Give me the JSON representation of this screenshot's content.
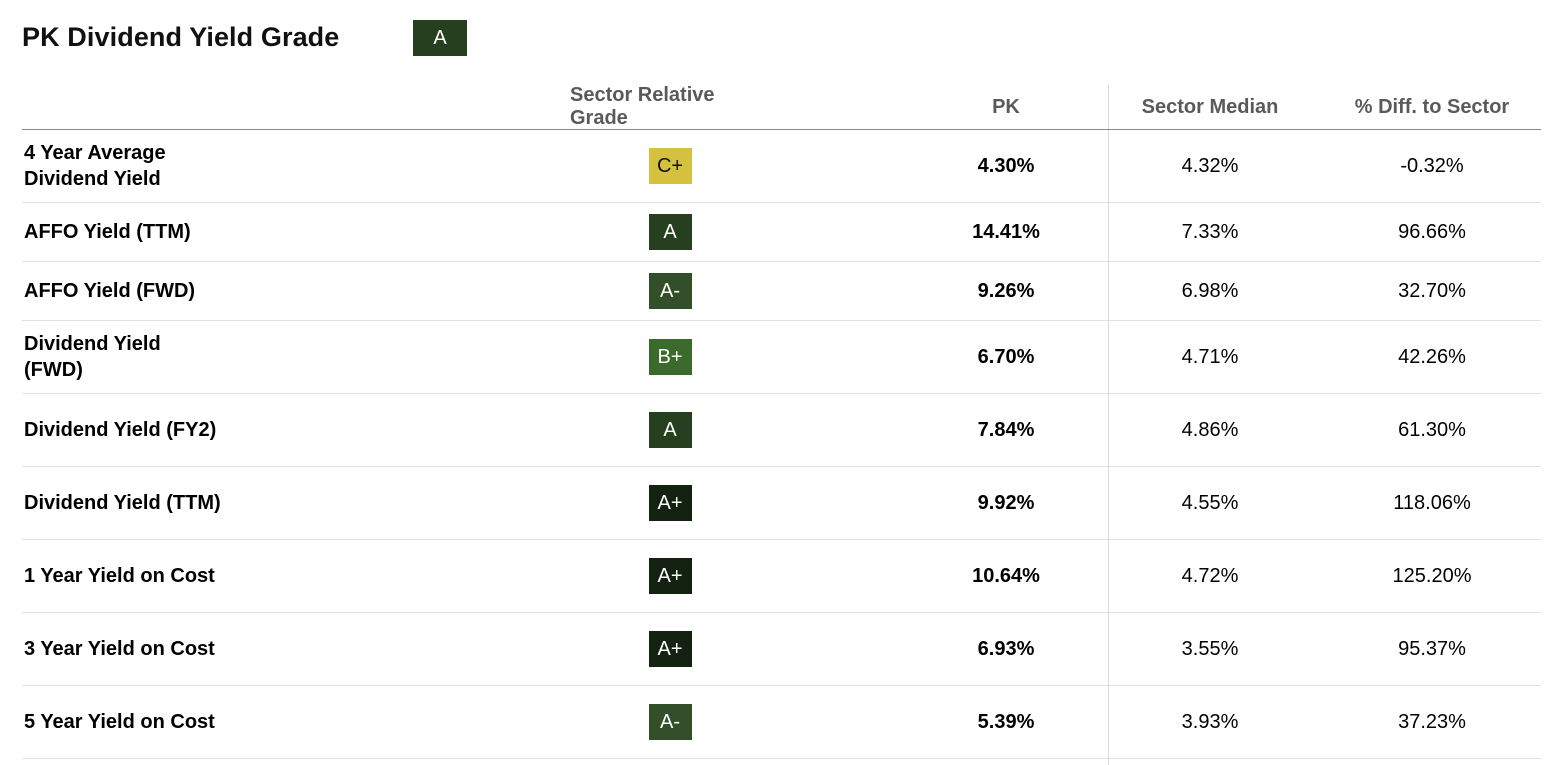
{
  "header": {
    "title": "PK Dividend Yield Grade",
    "overall_grade": "A",
    "overall_grade_color": "#263f1e"
  },
  "table": {
    "columns": {
      "metric": "",
      "grade": "Sector Relative Grade",
      "pk": "PK",
      "median": "Sector Median",
      "diff": "% Diff. to Sector"
    },
    "rows": [
      {
        "metric": "4 Year Average Dividend Yield",
        "grade": "C+",
        "grade_color": "#d4c13f",
        "pk": "4.30%",
        "median": "4.32%",
        "diff": "-0.32%"
      },
      {
        "metric": "AFFO Yield (TTM)",
        "grade": "A",
        "grade_color": "#263f1e",
        "pk": "14.41%",
        "median": "7.33%",
        "diff": "96.66%"
      },
      {
        "metric": "AFFO Yield (FWD)",
        "grade": "A-",
        "grade_color": "#324f2a",
        "pk": "9.26%",
        "median": "6.98%",
        "diff": "32.70%"
      },
      {
        "metric": "Dividend Yield (FWD)",
        "grade": "B+",
        "grade_color": "#3b6b2b",
        "pk": "6.70%",
        "median": "4.71%",
        "diff": "42.26%"
      },
      {
        "metric": "Dividend Yield (FY2)",
        "grade": "A",
        "grade_color": "#263f1e",
        "pk": "7.84%",
        "median": "4.86%",
        "diff": "61.30%"
      },
      {
        "metric": "Dividend Yield (TTM)",
        "grade": "A+",
        "grade_color": "#142311",
        "pk": "9.92%",
        "median": "4.55%",
        "diff": "118.06%"
      },
      {
        "metric": "1 Year Yield on Cost",
        "grade": "A+",
        "grade_color": "#142311",
        "pk": "10.64%",
        "median": "4.72%",
        "diff": "125.20%"
      },
      {
        "metric": "3 Year Yield on Cost",
        "grade": "A+",
        "grade_color": "#142311",
        "pk": "6.93%",
        "median": "3.55%",
        "diff": "95.37%"
      },
      {
        "metric": "5 Year Yield on Cost",
        "grade": "A-",
        "grade_color": "#324f2a",
        "pk": "5.39%",
        "median": "3.93%",
        "diff": "37.23%"
      }
    ]
  }
}
